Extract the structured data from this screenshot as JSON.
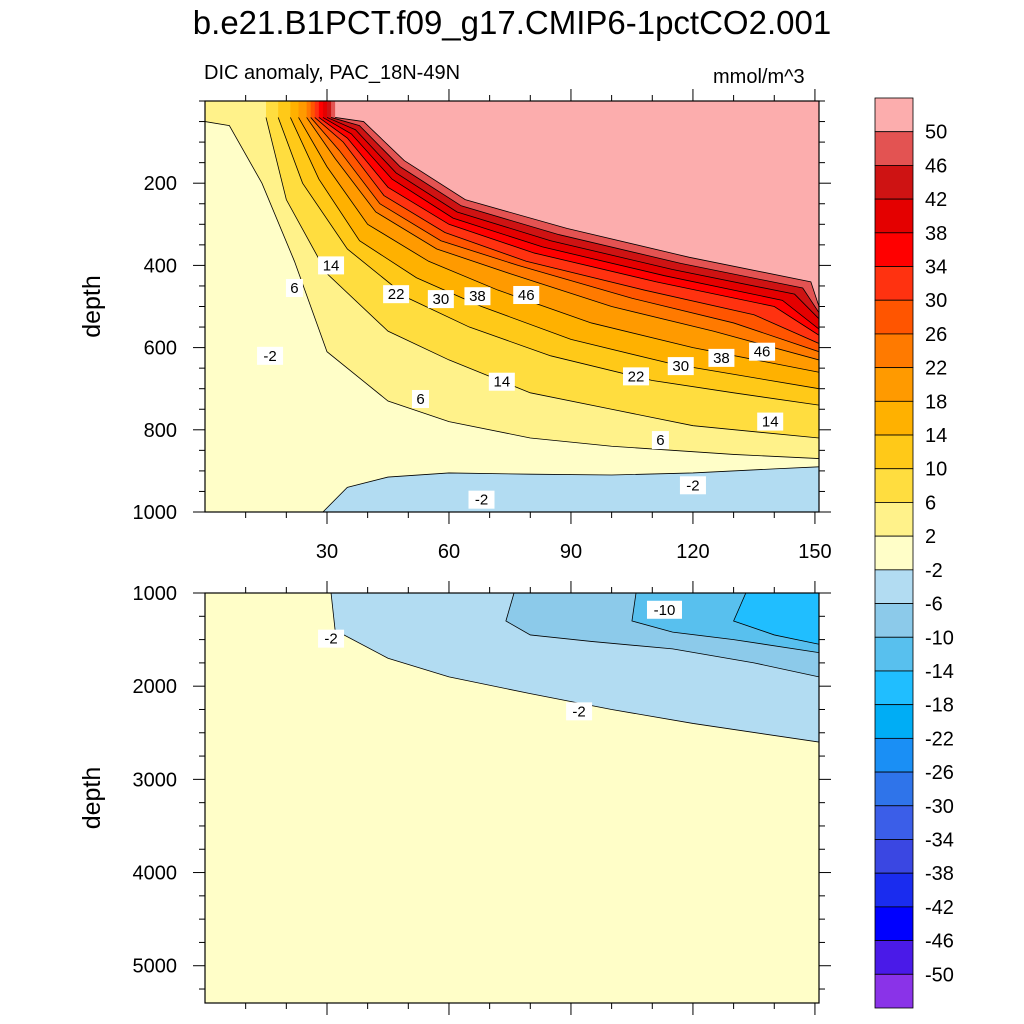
{
  "title": "b.e21.B1PCT.f09_g17.CMIP6-1pctCO2.001",
  "subtitle_left": "DIC anomaly, PAC_18N-49N",
  "subtitle_right": "mmol/m^3",
  "chart_data": [
    {
      "type": "contour",
      "panel": "upper",
      "ylabel": "depth",
      "xlabel": "",
      "xlim": [
        0,
        151
      ],
      "ylim_inverted": [
        0,
        1000
      ],
      "xticks": [
        30,
        60,
        90,
        120,
        150
      ],
      "yticks": [
        200,
        400,
        600,
        800,
        1000
      ],
      "contour_interval": 4,
      "isolines": [
        {
          "level": 2,
          "points": [
            [
              0,
              50
            ],
            [
              6,
              60
            ],
            [
              14,
              200
            ],
            [
              22,
              390
            ],
            [
              30,
              610
            ],
            [
              45,
              730
            ],
            [
              60,
              780
            ],
            [
              80,
              820
            ],
            [
              100,
              840
            ],
            [
              130,
              860
            ],
            [
              151,
              870
            ]
          ]
        },
        {
          "level": 6,
          "points": [
            [
              15,
              40
            ],
            [
              20,
              240
            ],
            [
              30,
              420
            ],
            [
              45,
              560
            ],
            [
              60,
              630
            ],
            [
              80,
              710
            ],
            [
              100,
              750
            ],
            [
              120,
              790
            ],
            [
              151,
              820
            ]
          ]
        },
        {
          "level": 10,
          "points": [
            [
              18,
              40
            ],
            [
              24,
              200
            ],
            [
              35,
              360
            ],
            [
              50,
              480
            ],
            [
              65,
              550
            ],
            [
              85,
              620
            ],
            [
              110,
              680
            ],
            [
              130,
              710
            ],
            [
              151,
              740
            ]
          ]
        },
        {
          "level": 14,
          "points": [
            [
              21,
              40
            ],
            [
              28,
              190
            ],
            [
              38,
              340
            ],
            [
              52,
              430
            ],
            [
              68,
              500
            ],
            [
              90,
              580
            ],
            [
              115,
              640
            ],
            [
              151,
              700
            ]
          ]
        },
        {
          "level": 18,
          "points": [
            [
              23,
              40
            ],
            [
              30,
              160
            ],
            [
              40,
              300
            ],
            [
              55,
              390
            ],
            [
              72,
              460
            ],
            [
              95,
              540
            ],
            [
              120,
              600
            ],
            [
              151,
              660
            ]
          ]
        },
        {
          "level": 22,
          "points": [
            [
              25,
              40
            ],
            [
              32,
              140
            ],
            [
              42,
              270
            ],
            [
              57,
              360
            ],
            [
              75,
              420
            ],
            [
              100,
              500
            ],
            [
              125,
              560
            ],
            [
              151,
              630
            ]
          ]
        },
        {
          "level": 26,
          "points": [
            [
              26,
              40
            ],
            [
              33,
              120
            ],
            [
              43,
              250
            ],
            [
              58,
              340
            ],
            [
              77,
              400
            ],
            [
              105,
              480
            ],
            [
              130,
              540
            ],
            [
              151,
              610
            ]
          ]
        },
        {
          "level": 30,
          "points": [
            [
              27,
              40
            ],
            [
              34,
              100
            ],
            [
              44,
              230
            ],
            [
              59,
              320
            ],
            [
              79,
              390
            ],
            [
              108,
              460
            ],
            [
              135,
              520
            ],
            [
              151,
              590
            ]
          ]
        },
        {
          "level": 34,
          "points": [
            [
              28,
              40
            ],
            [
              35,
              90
            ],
            [
              45,
              210
            ],
            [
              60,
              300
            ],
            [
              81,
              370
            ],
            [
              111,
              440
            ],
            [
              140,
              500
            ],
            [
              151,
              570
            ]
          ]
        },
        {
          "level": 38,
          "points": [
            [
              29,
              40
            ],
            [
              36,
              80
            ],
            [
              46,
              190
            ],
            [
              61,
              285
            ],
            [
              83,
              355
            ],
            [
              113,
              425
            ],
            [
              142,
              485
            ],
            [
              151,
              555
            ]
          ]
        },
        {
          "level": 42,
          "points": [
            [
              30,
              40
            ],
            [
              37,
              70
            ],
            [
              47,
              175
            ],
            [
              62,
              270
            ],
            [
              85,
              340
            ],
            [
              115,
              410
            ],
            [
              145,
              470
            ],
            [
              151,
              530
            ]
          ]
        },
        {
          "level": 46,
          "points": [
            [
              31,
              40
            ],
            [
              38,
              60
            ],
            [
              48,
              160
            ],
            [
              63,
              255
            ],
            [
              87,
              325
            ],
            [
              117,
              395
            ],
            [
              147,
              455
            ],
            [
              151,
              515
            ]
          ]
        },
        {
          "level": 50,
          "points": [
            [
              32,
              40
            ],
            [
              39,
              50
            ],
            [
              49,
              145
            ],
            [
              64,
              240
            ],
            [
              89,
              310
            ],
            [
              119,
              380
            ],
            [
              149,
              440
            ],
            [
              151,
              500
            ]
          ]
        },
        {
          "level": -2,
          "points": [
            [
              29,
              1000
            ],
            [
              35,
              940
            ],
            [
              45,
              915
            ],
            [
              60,
              905
            ],
            [
              80,
              908
            ],
            [
              100,
              910
            ],
            [
              120,
              905
            ],
            [
              140,
              895
            ],
            [
              151,
              890
            ]
          ]
        }
      ],
      "line_labels": [
        {
          "text": "14",
          "x": 31,
          "y": 400
        },
        {
          "text": "6",
          "x": 22,
          "y": 455
        },
        {
          "text": "22",
          "x": 47,
          "y": 470
        },
        {
          "text": "30",
          "x": 58,
          "y": 482
        },
        {
          "text": "38",
          "x": 67,
          "y": 475
        },
        {
          "text": "46",
          "x": 79,
          "y": 472
        },
        {
          "text": "-2",
          "x": 16,
          "y": 620
        },
        {
          "text": "46",
          "x": 137,
          "y": 610
        },
        {
          "text": "38",
          "x": 127,
          "y": 625
        },
        {
          "text": "30",
          "x": 117,
          "y": 645
        },
        {
          "text": "22",
          "x": 106,
          "y": 670
        },
        {
          "text": "14",
          "x": 73,
          "y": 683
        },
        {
          "text": "6",
          "x": 53,
          "y": 725
        },
        {
          "text": "14",
          "x": 139,
          "y": 780
        },
        {
          "text": "6",
          "x": 112,
          "y": 825
        },
        {
          "text": "-2",
          "x": 120,
          "y": 935
        },
        {
          "text": "-2",
          "x": 68,
          "y": 970
        }
      ]
    },
    {
      "type": "contour",
      "panel": "lower",
      "ylabel": "depth",
      "xlabel": "",
      "xlim": [
        0,
        151
      ],
      "ylim_inverted": [
        1000,
        5400
      ],
      "yticks": [
        1000,
        2000,
        3000,
        4000,
        5000
      ],
      "isolines": [
        {
          "level": -2,
          "points": [
            [
              31,
              1000
            ],
            [
              32,
              1400
            ],
            [
              45,
              1700
            ],
            [
              60,
              1900
            ],
            [
              80,
              2080
            ],
            [
              100,
              2250
            ],
            [
              120,
              2400
            ],
            [
              151,
              2600
            ]
          ]
        },
        {
          "level": -6,
          "points": [
            [
              76,
              1000
            ],
            [
              74,
              1300
            ],
            [
              80,
              1450
            ],
            [
              95,
              1520
            ],
            [
              115,
              1600
            ],
            [
              135,
              1750
            ],
            [
              151,
              1900
            ]
          ]
        },
        {
          "level": -10,
          "points": [
            [
              106,
              1000
            ],
            [
              105,
              1300
            ],
            [
              115,
              1420
            ],
            [
              130,
              1500
            ],
            [
              151,
              1640
            ]
          ]
        },
        {
          "level": -14,
          "points": [
            [
              133,
              1000
            ],
            [
              130,
              1300
            ],
            [
              140,
              1450
            ],
            [
              151,
              1550
            ]
          ]
        }
      ],
      "line_labels": [
        {
          "text": "-2",
          "x": 31,
          "y": 1490
        },
        {
          "text": "-10",
          "x": 113,
          "y": 1180
        },
        {
          "text": "-2",
          "x": 92,
          "y": 2270
        }
      ]
    }
  ],
  "colorbar": {
    "levels": [
      50,
      46,
      42,
      38,
      34,
      30,
      26,
      22,
      18,
      14,
      10,
      6,
      2,
      -2,
      -6,
      -10,
      -14,
      -18,
      -22,
      -26,
      -30,
      -34,
      -38,
      -42,
      -46,
      -50
    ],
    "colors": [
      "#fcadad",
      "#e35352",
      "#ce1313",
      "#e40000",
      "#ff0000",
      "#ff3210",
      "#ff5500",
      "#ff7a00",
      "#ff9a00",
      "#ffb100",
      "#ffc918",
      "#ffdd3f",
      "#fff28a",
      "#fffec8",
      "#b2dcf2",
      "#8ccaea",
      "#58c0ee",
      "#20beff",
      "#00adf5",
      "#1a8ff5",
      "#2f74ea",
      "#3b5ee8",
      "#3a47e2",
      "#1a2cef",
      "#0000ff",
      "#4a1ae8",
      "#8a33e8"
    ]
  }
}
